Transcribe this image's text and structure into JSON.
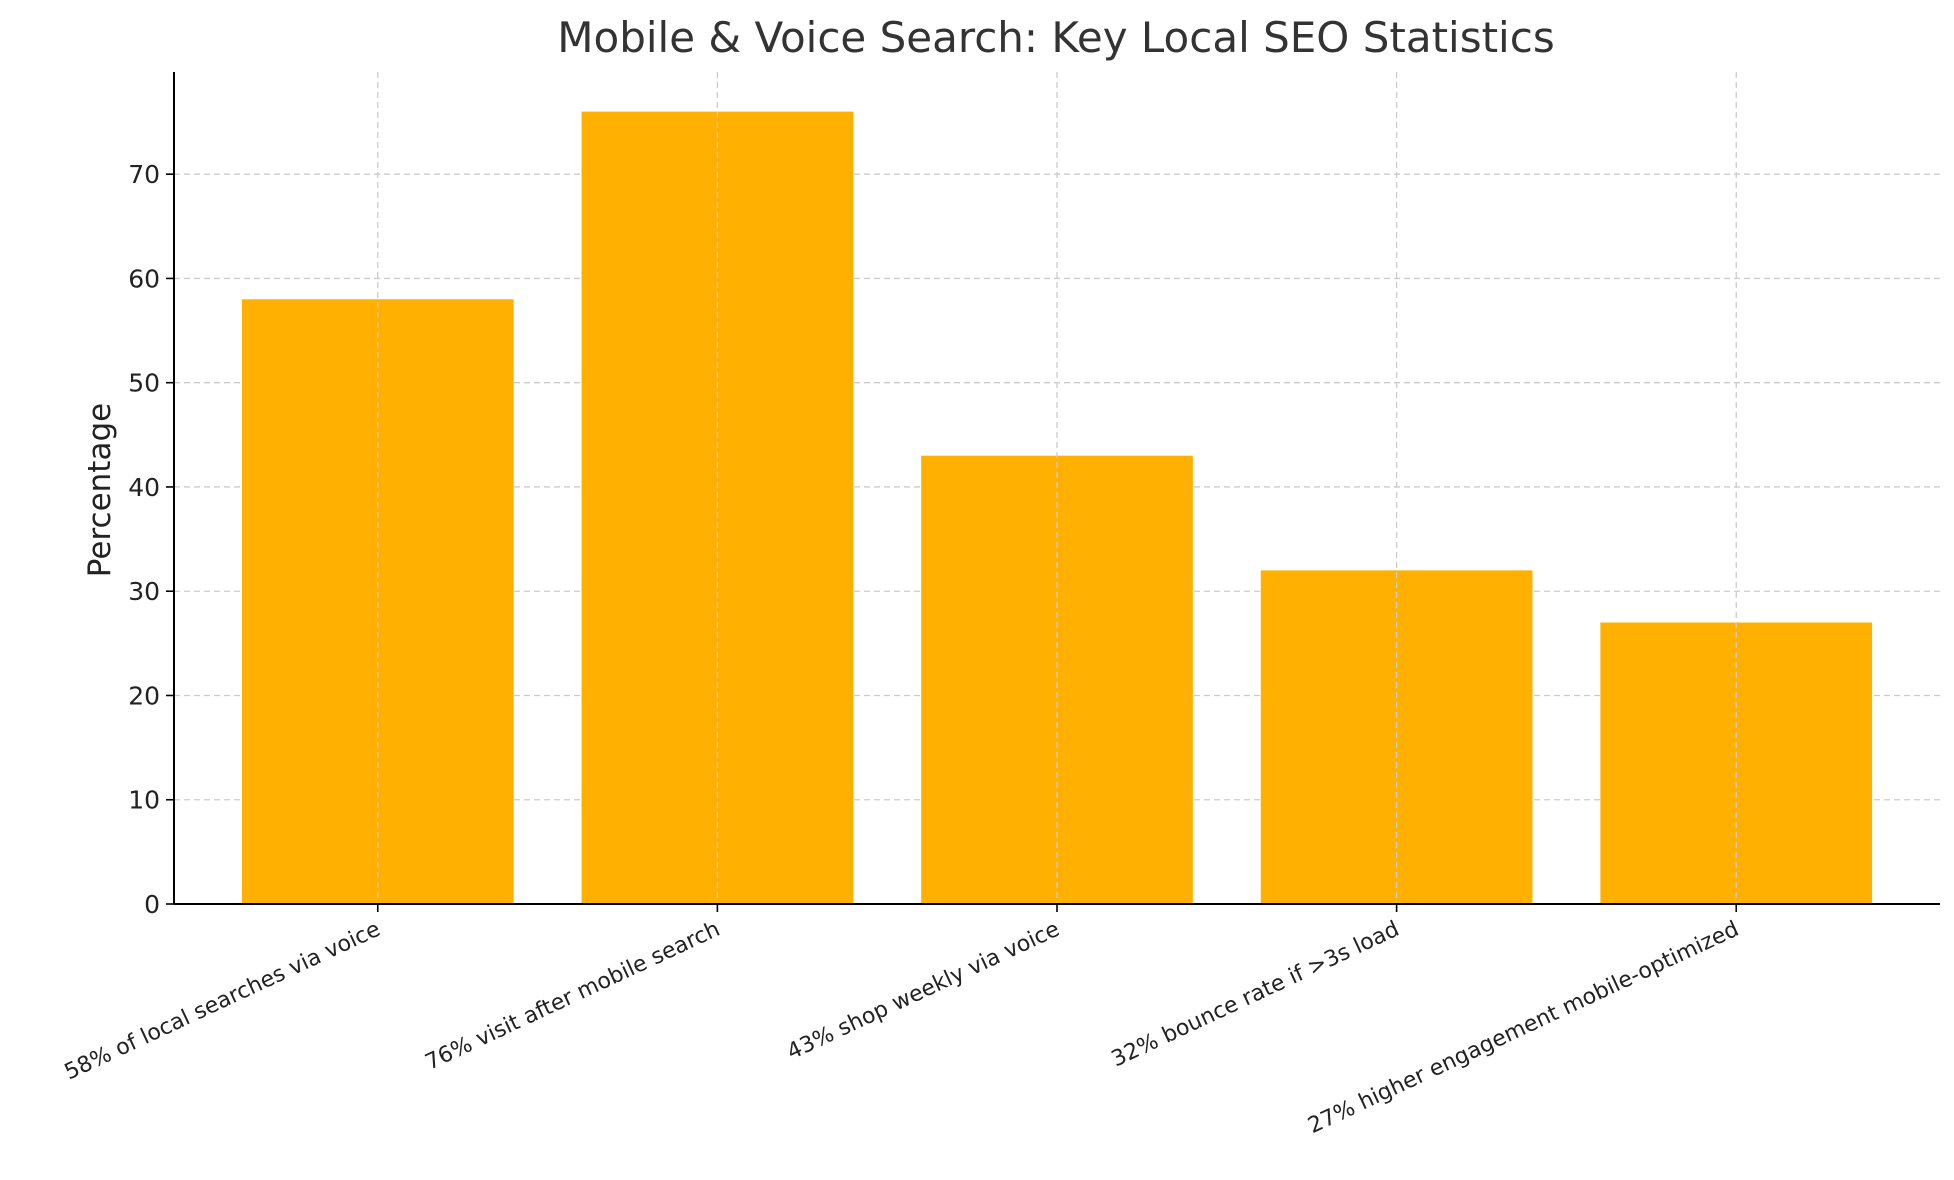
{
  "chart_data": {
    "type": "bar",
    "title": "Mobile & Voice Search: Key Local SEO Statistics",
    "xlabel": "",
    "ylabel": "Percentage",
    "categories": [
      "58% of local searches via voice",
      "76% visit after mobile search",
      "43% shop weekly via voice",
      "32% bounce rate if >3s load",
      "27% higher engagement mobile-optimized"
    ],
    "values": [
      58,
      76,
      43,
      32,
      27
    ],
    "ylim": [
      0,
      79.8
    ],
    "yticks": [
      0,
      10,
      20,
      30,
      40,
      50,
      60,
      70
    ],
    "bar_color": "#FFB000",
    "grid": true,
    "legend": "none"
  }
}
